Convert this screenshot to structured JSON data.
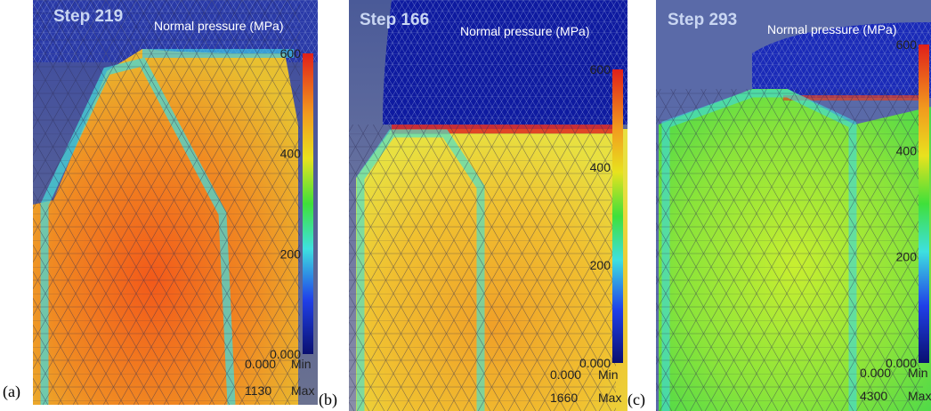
{
  "panels": [
    {
      "label": "(a)",
      "step": "Step 219",
      "colorbar_title": "Normal pressure (MPa)",
      "colorbar_ticks": [
        "600",
        "400",
        "200",
        "0.000"
      ],
      "min_value": "0.000",
      "min_label": "Min",
      "max_value": "1130",
      "max_label": "Max"
    },
    {
      "label": "(b)",
      "step": "Step 166",
      "colorbar_title": "Normal pressure (MPa)",
      "colorbar_ticks": [
        "600",
        "400",
        "200",
        "0.000"
      ],
      "min_value": "0.000",
      "min_label": "Min",
      "max_value": "1660",
      "max_label": "Max"
    },
    {
      "label": "(c)",
      "step": "Step 293",
      "colorbar_title": "Normal pressure (MPa)",
      "colorbar_ticks": [
        "600",
        "400",
        "200",
        "0.000"
      ],
      "min_value": "0.000",
      "min_label": "Min",
      "max_value": "4300",
      "max_label": "Max"
    }
  ]
}
